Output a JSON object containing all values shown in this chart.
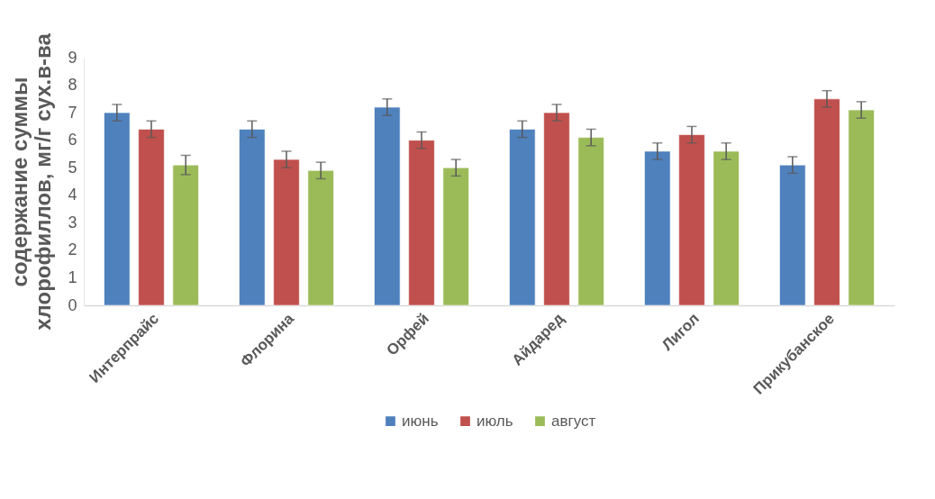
{
  "chart_data": {
    "type": "bar",
    "ylabel": "содержание суммы\nхлорофиллов, мг/г сух.в-ва",
    "categories": [
      "Интерпрайс",
      "Флорина",
      "Орфей",
      "Айдаред",
      "Лигол",
      "Прикубанское"
    ],
    "series": [
      {
        "name": "июнь",
        "color": "#4f81bd",
        "values": [
          7.0,
          6.4,
          7.2,
          6.4,
          5.6,
          5.1
        ],
        "errors": [
          0.3,
          0.3,
          0.3,
          0.3,
          0.3,
          0.3
        ]
      },
      {
        "name": "июль",
        "color": "#c0504d",
        "values": [
          6.4,
          5.3,
          6.0,
          7.0,
          6.2,
          7.5
        ],
        "errors": [
          0.3,
          0.3,
          0.3,
          0.3,
          0.3,
          0.3
        ]
      },
      {
        "name": "август",
        "color": "#9bbb59",
        "values": [
          5.1,
          4.9,
          5.0,
          6.1,
          5.6,
          7.1
        ],
        "errors": [
          0.35,
          0.3,
          0.3,
          0.3,
          0.3,
          0.3
        ]
      }
    ],
    "ylim": [
      0,
      9
    ],
    "yticks": [
      0,
      1,
      2,
      3,
      4,
      5,
      6,
      7,
      8,
      9
    ],
    "grid": false,
    "legend": "bottom"
  }
}
